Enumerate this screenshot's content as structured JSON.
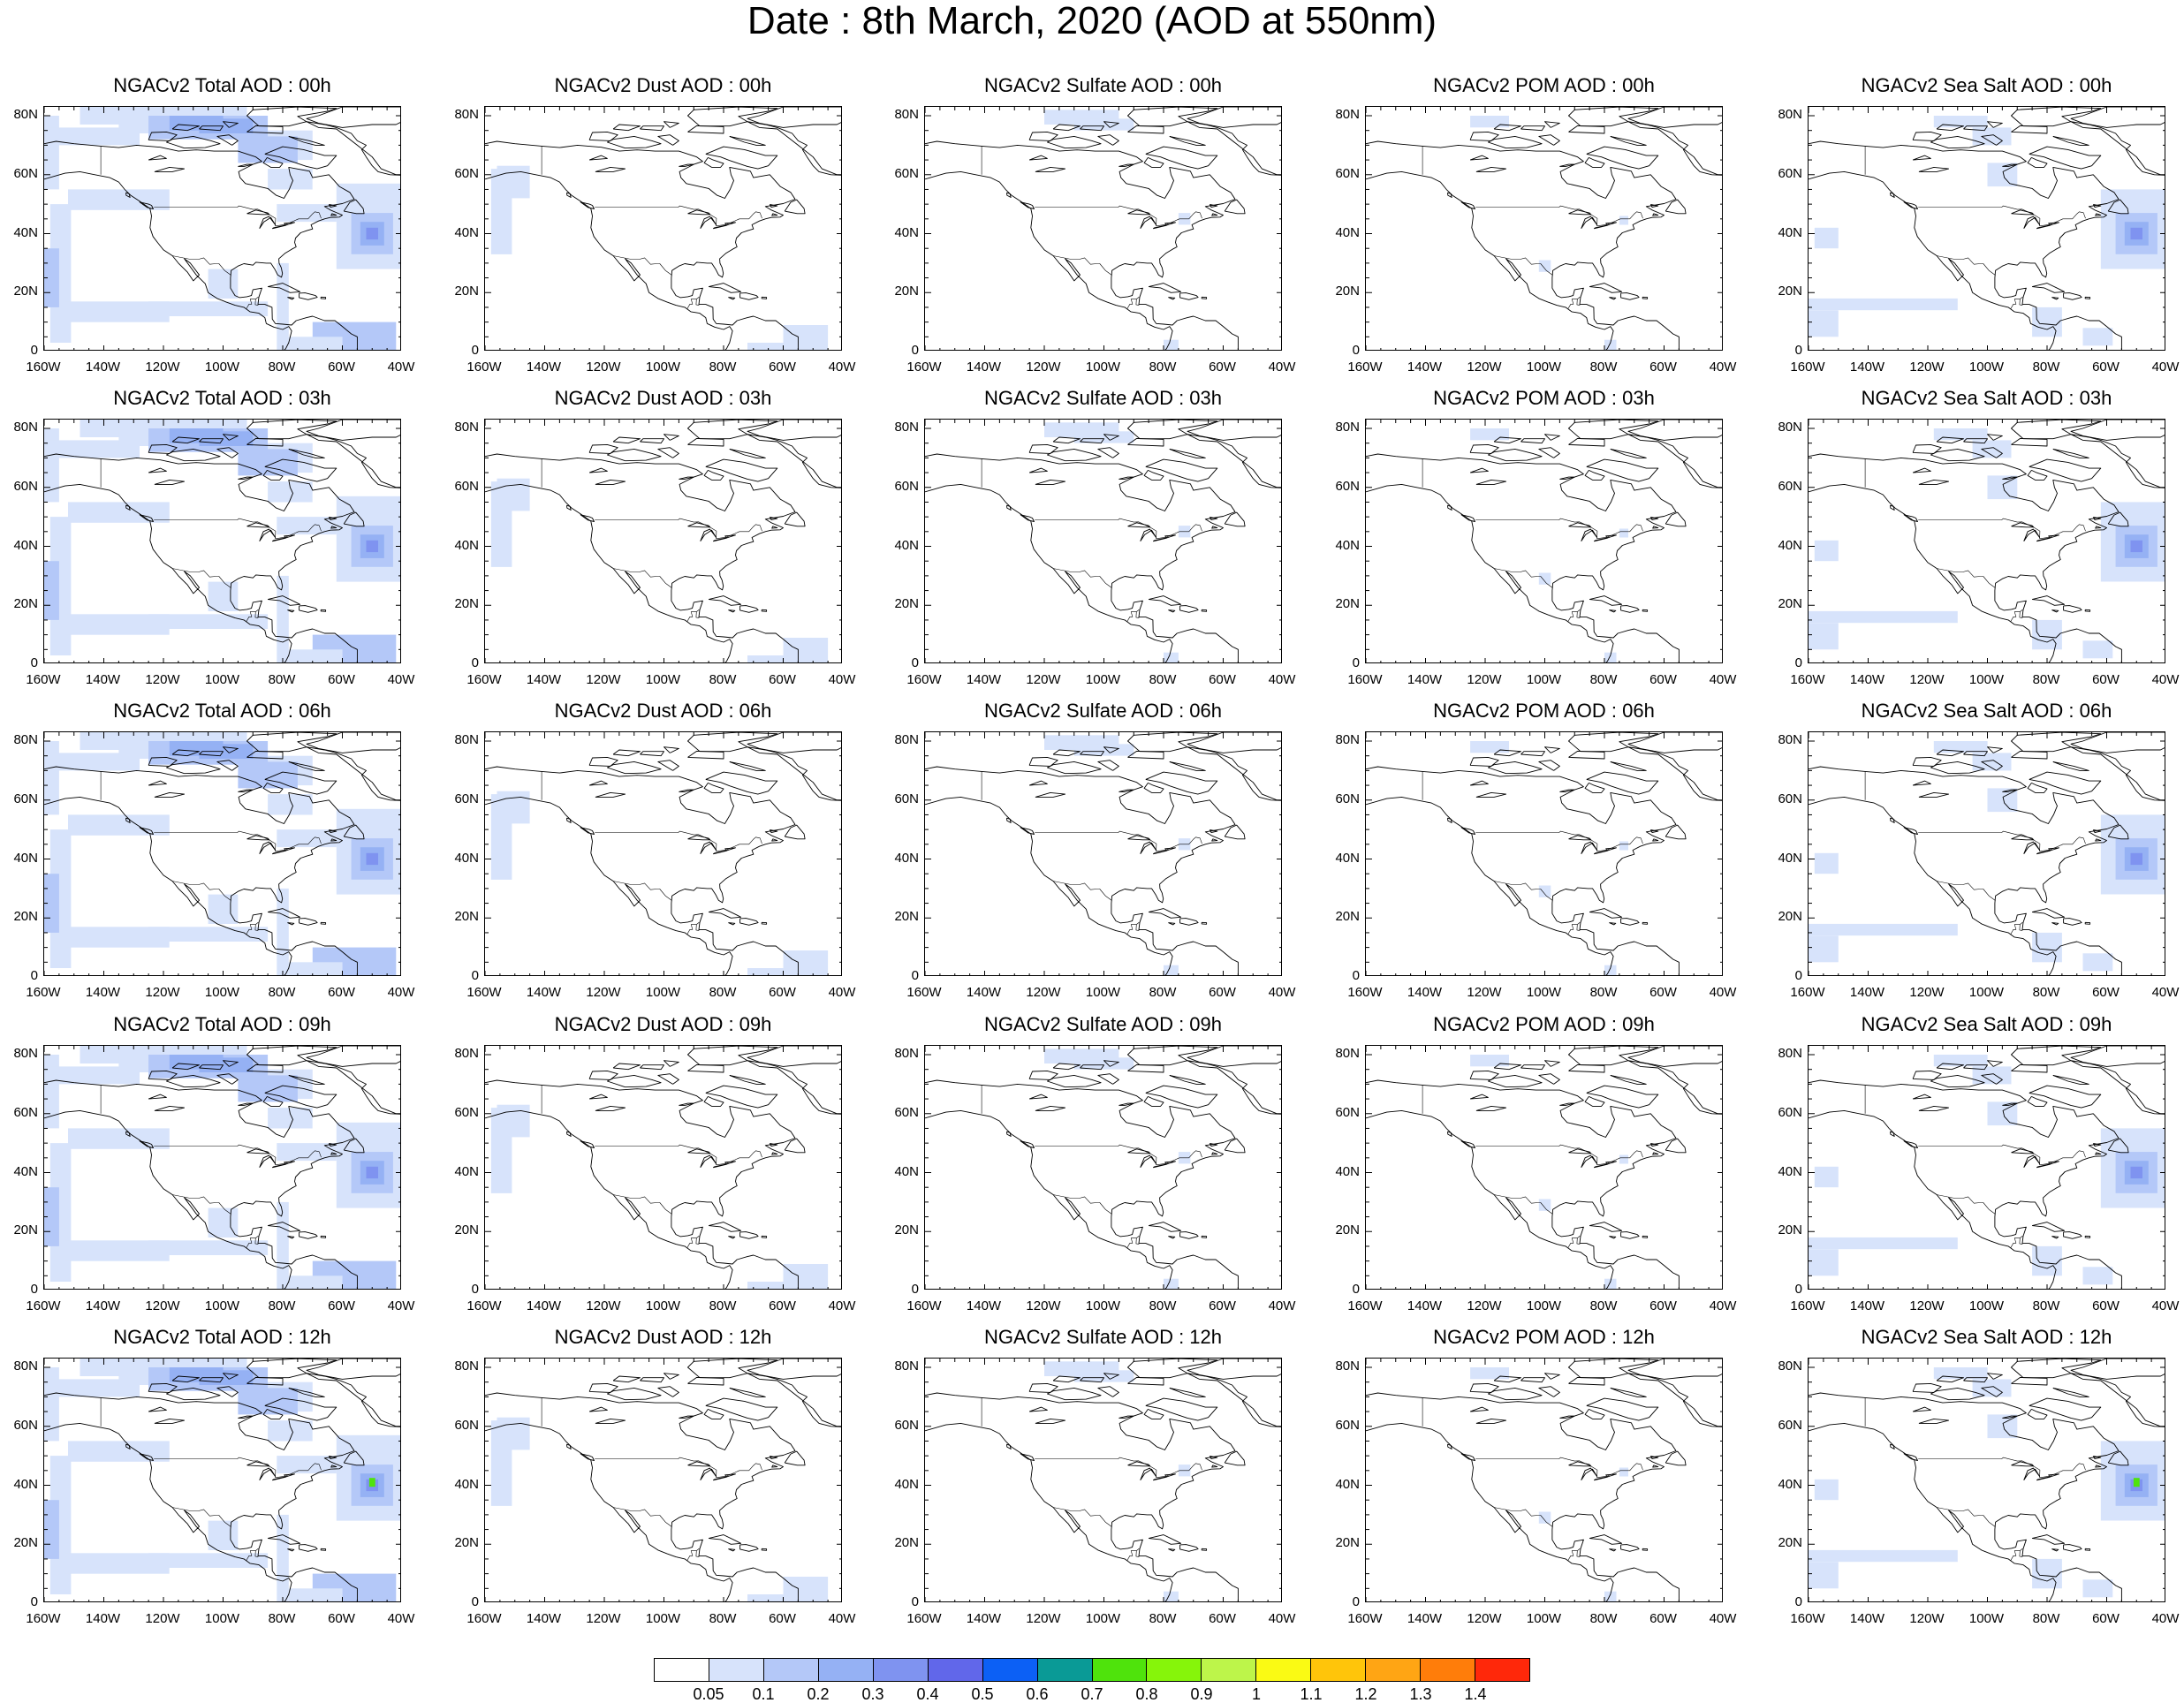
{
  "title": "Date : 8th March, 2020 (AOD at 550nm)",
  "panels": [
    [
      "NGACv2 Total AOD : 00h",
      "NGACv2 Dust AOD : 00h",
      "NGACv2 Sulfate AOD : 00h",
      "NGACv2 POM AOD : 00h",
      "NGACv2 Sea Salt AOD : 00h"
    ],
    [
      "NGACv2 Total AOD : 03h",
      "NGACv2 Dust AOD : 03h",
      "NGACv2 Sulfate AOD : 03h",
      "NGACv2 POM AOD : 03h",
      "NGACv2 Sea Salt AOD : 03h"
    ],
    [
      "NGACv2 Total AOD : 06h",
      "NGACv2 Dust AOD : 06h",
      "NGACv2 Sulfate AOD : 06h",
      "NGACv2 POM AOD : 06h",
      "NGACv2 Sea Salt AOD : 06h"
    ],
    [
      "NGACv2 Total AOD : 09h",
      "NGACv2 Dust AOD : 09h",
      "NGACv2 Sulfate AOD : 09h",
      "NGACv2 POM AOD : 09h",
      "NGACv2 Sea Salt  AOD : 09h"
    ],
    [
      "NGACv2 Total AOD  : 12h",
      "NGACv2 Dust AOD : 12h",
      "NGACv2 Sulfate AOD : 12h",
      "NGACv2 POM  AOD : 12h",
      "NGACv2 Sea Salt  AOD : 12h"
    ]
  ],
  "axes": {
    "lat_labels": [
      "80N",
      "60N",
      "40N",
      "20N",
      "0"
    ],
    "lon_labels": [
      "160W",
      "140W",
      "120W",
      "100W",
      "80W",
      "60W",
      "40W"
    ],
    "lat_range": [
      0,
      83
    ],
    "lon_range": [
      -160,
      -40
    ]
  },
  "colorbar": {
    "colors": [
      "#ffffff",
      "#d7e3fb",
      "#b4c8f8",
      "#95b1f4",
      "#7f93f0",
      "#6167ea",
      "#0c60f5",
      "#0a9a96",
      "#4fe30c",
      "#86f50a",
      "#bdf54a",
      "#fafa14",
      "#ffc50a",
      "#ffa514",
      "#ff7d0a",
      "#ff280a"
    ],
    "labels": [
      "0.05",
      "0.1",
      "0.2",
      "0.3",
      "0.4",
      "0.5",
      "0.6",
      "0.7",
      "0.8",
      "0.9",
      "1",
      "1.1",
      "1.2",
      "1.3",
      "1.4"
    ]
  }
}
